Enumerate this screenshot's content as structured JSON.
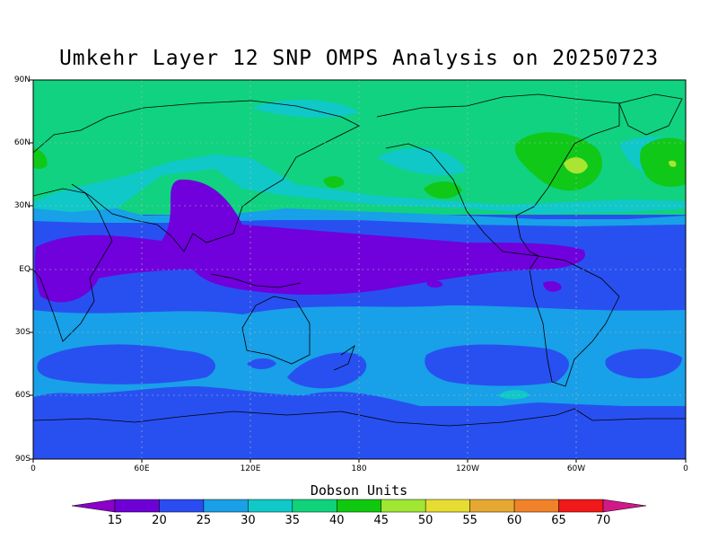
{
  "title": "Umkehr Layer 12 SNP OMPS Analysis on 20250723",
  "lat_labels": [
    "90N",
    "60N",
    "30N",
    "EQ",
    "30S",
    "60S",
    "90S"
  ],
  "lon_labels": [
    "0",
    "60E",
    "120E",
    "180",
    "120W",
    "60W",
    "0"
  ],
  "colorbar": {
    "title": "Dobson Units",
    "ticks": [
      "15",
      "20",
      "25",
      "30",
      "35",
      "40",
      "45",
      "50",
      "55",
      "60",
      "65",
      "70"
    ],
    "colors": [
      "#8a00c8",
      "#6e00d6",
      "#2a4cf0",
      "#1aa0e6",
      "#10c8c8",
      "#10d27a",
      "#10c810",
      "#a0e632",
      "#e6dc32",
      "#e6a832",
      "#f0822a",
      "#f01818",
      "#d01888"
    ]
  },
  "palette": {
    "c20": "#7000dc",
    "c25": "#2850f0",
    "c30": "#18a0e8",
    "c35": "#10c8c8",
    "c40": "#10d280",
    "c45": "#10c818",
    "c50": "#a8e630"
  }
}
